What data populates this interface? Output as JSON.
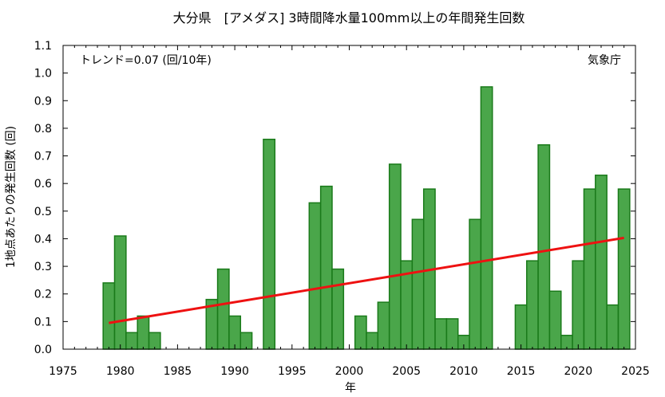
{
  "chart_data": {
    "type": "bar",
    "title": "大分県　[アメダス] 3時間降水量100mm以上の年間発生回数",
    "xlabel": "年",
    "ylabel": "1地点あたりの発生回数 (回)",
    "xlim": [
      1975,
      2025
    ],
    "ylim": [
      0.0,
      1.1
    ],
    "x_ticks": [
      "1975",
      "1980",
      "1985",
      "1990",
      "1995",
      "2000",
      "2005",
      "2010",
      "2015",
      "2020",
      "2025"
    ],
    "x_tick_values": [
      1975,
      1980,
      1985,
      1990,
      1995,
      2000,
      2005,
      2010,
      2015,
      2020,
      2025
    ],
    "y_ticks": [
      "0.0",
      "0.1",
      "0.2",
      "0.3",
      "0.4",
      "0.5",
      "0.6",
      "0.7",
      "0.8",
      "0.9",
      "1.0",
      "1.1"
    ],
    "y_tick_values": [
      0.0,
      0.1,
      0.2,
      0.3,
      0.4,
      0.5,
      0.6,
      0.7,
      0.8,
      0.9,
      1.0,
      1.1
    ],
    "grid": false,
    "bar_color": "#4aa64a",
    "bar_edge_color": "#1a7a1a",
    "trend_color": "#ee1111",
    "series": [
      {
        "x": [
          1979,
          1980,
          1981,
          1982,
          1983,
          1984,
          1985,
          1986,
          1987,
          1988,
          1989,
          1990,
          1991,
          1992,
          1993,
          1994,
          1995,
          1996,
          1997,
          1998,
          1999,
          2000,
          2001,
          2002,
          2003,
          2004,
          2005,
          2006,
          2007,
          2008,
          2009,
          2010,
          2011,
          2012,
          2013,
          2014,
          2015,
          2016,
          2017,
          2018,
          2019,
          2020,
          2021,
          2022,
          2023,
          2024
        ],
        "values": [
          0.24,
          0.41,
          0.06,
          0.12,
          0.06,
          0,
          0,
          0,
          0,
          0.18,
          0.29,
          0.12,
          0.06,
          0,
          0.76,
          0,
          0,
          0,
          0.53,
          0.59,
          0.29,
          0,
          0.12,
          0.06,
          0.17,
          0.67,
          0.32,
          0.47,
          0.58,
          0.11,
          0.11,
          0.05,
          0.47,
          0.95,
          0,
          0,
          0.16,
          0.32,
          0.74,
          0.21,
          0.05,
          0.32,
          0.58,
          0.63,
          0.16,
          0.58
        ]
      }
    ],
    "trend": {
      "x": [
        1979,
        2024
      ],
      "y": [
        0.095,
        0.403
      ]
    },
    "annotations": {
      "trend_text": "トレンド=0.07 (回/10年)",
      "source": "気象庁"
    }
  }
}
